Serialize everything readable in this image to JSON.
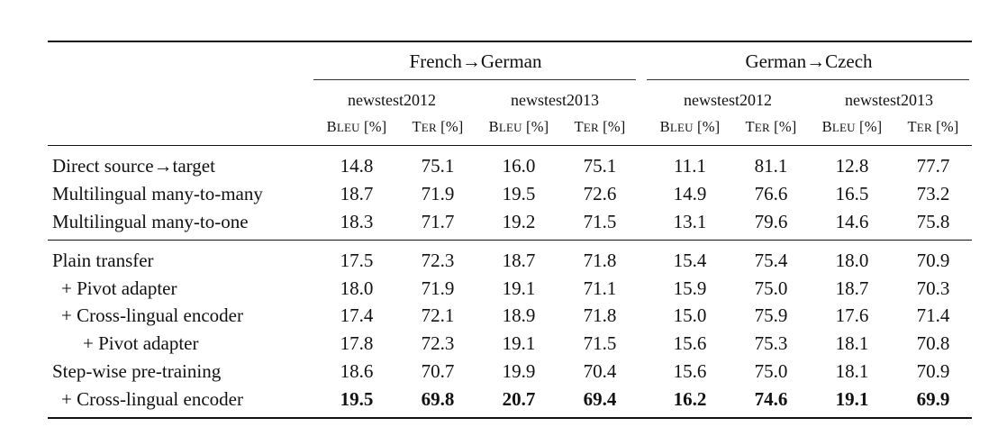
{
  "table": {
    "groups": [
      "French→German",
      "German→Czech"
    ],
    "testsets": [
      "newstest2012",
      "newstest2013",
      "newstest2012",
      "newstest2013"
    ],
    "metrics": [
      {
        "cap": "B",
        "small": "LEU",
        "unit": " [%]"
      },
      {
        "cap": "T",
        "small": "ER",
        "unit": " [%]"
      },
      {
        "cap": "B",
        "small": "LEU",
        "unit": " [%]"
      },
      {
        "cap": "T",
        "small": "ER",
        "unit": " [%]"
      },
      {
        "cap": "B",
        "small": "LEU",
        "unit": " [%]"
      },
      {
        "cap": "T",
        "small": "ER",
        "unit": " [%]"
      },
      {
        "cap": "B",
        "small": "LEU",
        "unit": " [%]"
      },
      {
        "cap": "T",
        "small": "ER",
        "unit": " [%]"
      }
    ],
    "rows": [
      {
        "label": "Direct source→target",
        "values": [
          "14.8",
          "75.1",
          "16.0",
          "75.1",
          "11.1",
          "81.1",
          "12.8",
          "77.7"
        ]
      },
      {
        "label": "Multilingual many-to-many",
        "values": [
          "18.7",
          "71.9",
          "19.5",
          "72.6",
          "14.9",
          "76.6",
          "16.5",
          "73.2"
        ]
      },
      {
        "label": "Multilingual many-to-one",
        "values": [
          "18.3",
          "71.7",
          "19.2",
          "71.5",
          "13.1",
          "79.6",
          "14.6",
          "75.8"
        ]
      },
      {
        "label": "Plain transfer",
        "values": [
          "17.5",
          "72.3",
          "18.7",
          "71.8",
          "15.4",
          "75.4",
          "18.0",
          "70.9"
        ]
      },
      {
        "label": "+ Pivot adapter",
        "values": [
          "18.0",
          "71.9",
          "19.1",
          "71.1",
          "15.9",
          "75.0",
          "18.7",
          "70.3"
        ]
      },
      {
        "label": "+ Cross-lingual encoder",
        "values": [
          "17.4",
          "72.1",
          "18.9",
          "71.8",
          "15.0",
          "75.9",
          "17.6",
          "71.4"
        ]
      },
      {
        "label": "+ Pivot adapter",
        "values": [
          "17.8",
          "72.3",
          "19.1",
          "71.5",
          "15.6",
          "75.3",
          "18.1",
          "70.8"
        ]
      },
      {
        "label": "Step-wise pre-training",
        "values": [
          "18.6",
          "70.7",
          "19.9",
          "70.4",
          "15.6",
          "75.0",
          "18.1",
          "70.9"
        ]
      },
      {
        "label": "+ Cross-lingual encoder",
        "values": [
          "19.5",
          "69.8",
          "20.7",
          "69.4",
          "16.2",
          "74.6",
          "19.1",
          "69.9"
        ]
      }
    ]
  }
}
